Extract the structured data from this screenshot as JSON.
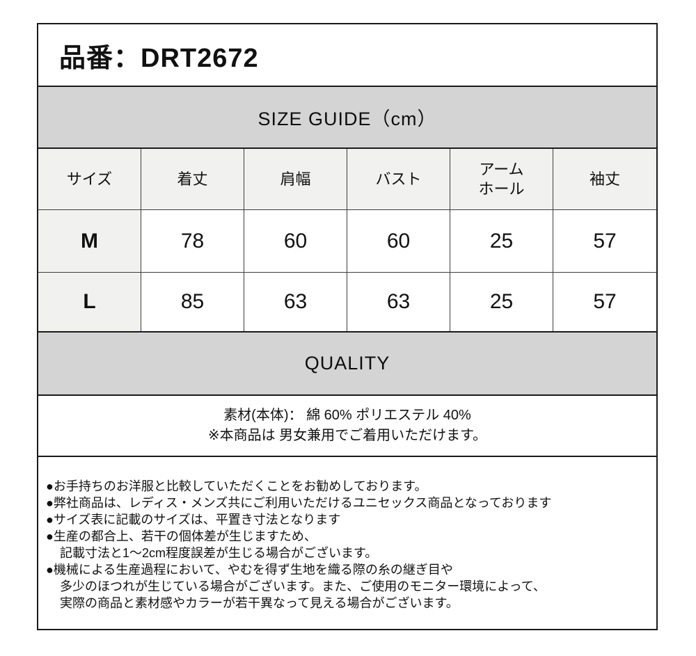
{
  "colors": {
    "bar_bg": "#d4d4d4",
    "header_cell_bg": "#f1f1ef",
    "border": "#1a1a1a",
    "inner_border": "#3c3c3c",
    "text": "#111111"
  },
  "header": {
    "product_number": "品番：DRT2672"
  },
  "size_guide": {
    "title": "SIZE GUIDE（cm）",
    "unit": "cm",
    "columns": [
      "サイズ",
      "着丈",
      "肩幅",
      "バスト",
      "アーム\nホール",
      "袖丈"
    ],
    "rows": [
      {
        "size": "M",
        "values": [
          "78",
          "60",
          "60",
          "25",
          "57"
        ]
      },
      {
        "size": "L",
        "values": [
          "85",
          "63",
          "63",
          "25",
          "57"
        ]
      }
    ]
  },
  "quality": {
    "title": "QUALITY",
    "material": "素材(本体)： 綿 60%  ポリエステル 40%",
    "unisex_note": "※本商品は 男女兼用でご着用いただけます。"
  },
  "notes": {
    "items": [
      {
        "text": "●お手持ちのお洋服と比較していただくことをお勧めしております。"
      },
      {
        "text": "●弊社商品は、レディス・メンズ共にご利用いただけるユニセックス商品となっております"
      },
      {
        "text": "●サイズ表に記載のサイズは、平置き寸法となります"
      },
      {
        "text": "●生産の都合上、若干の個体差が生じますため、"
      },
      {
        "text": "記載寸法と1～2cm程度誤差が生じる場合がございます。"
      },
      {
        "text": "●機械による生産過程において、やむを得ず生地を織る際の糸の継ぎ目や"
      },
      {
        "text": "多少のほつれが生じている場合がございます。また、ご使用のモニター環境によって、"
      },
      {
        "text": "実際の商品と素材感やカラーが若干異なって見える場合がございます。"
      }
    ]
  }
}
